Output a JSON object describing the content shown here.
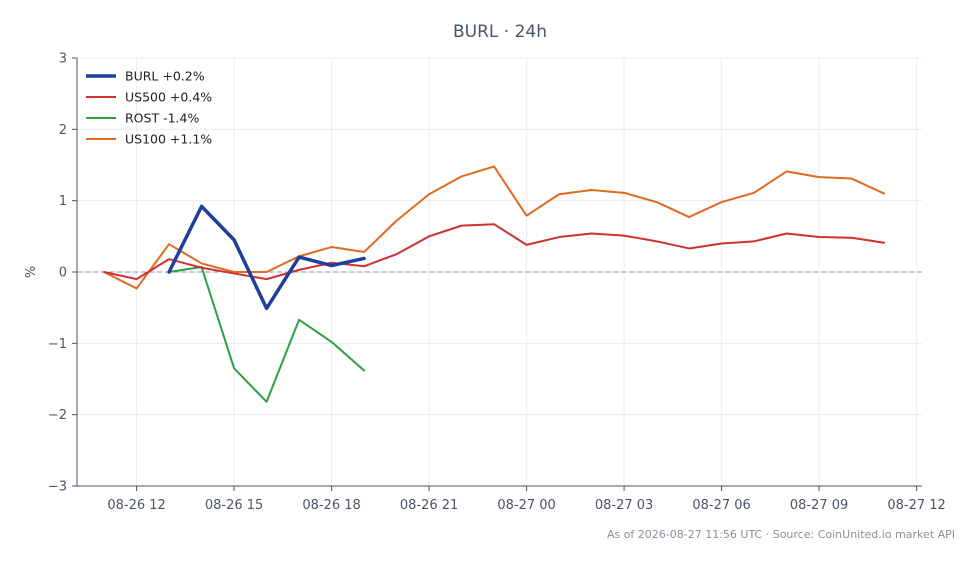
{
  "chart_data": {
    "type": "line",
    "title": "BURL · 24h",
    "ylabel": "%",
    "xlabel": "",
    "ylim": [
      -3,
      3
    ],
    "yticks": [
      {
        "value": 3,
        "label": "3"
      },
      {
        "value": 2,
        "label": "2"
      },
      {
        "value": 1,
        "label": "1"
      },
      {
        "value": 0,
        "label": "0"
      },
      {
        "value": -1,
        "label": "−1"
      },
      {
        "value": -2,
        "label": "−2"
      },
      {
        "value": -3,
        "label": "−3"
      }
    ],
    "xlim": [
      "08-26 10:10",
      "08-27 12:10"
    ],
    "xticks": [
      {
        "value": "08-26 12:00",
        "label": "08-26 12"
      },
      {
        "value": "08-26 15:00",
        "label": "08-26 15"
      },
      {
        "value": "08-26 18:00",
        "label": "08-26 18"
      },
      {
        "value": "08-26 21:00",
        "label": "08-26 21"
      },
      {
        "value": "08-27 00:00",
        "label": "08-27 00"
      },
      {
        "value": "08-27 03:00",
        "label": "08-27 03"
      },
      {
        "value": "08-27 06:00",
        "label": "08-27 06"
      },
      {
        "value": "08-27 09:00",
        "label": "08-27 09"
      },
      {
        "value": "08-27 12:00",
        "label": "08-27 12"
      }
    ],
    "grid": true,
    "zero_line": true,
    "legend_position": "top-left",
    "series": [
      {
        "name": "BURL +0.2%",
        "color": "#1f3f9e",
        "width": 3.5,
        "points": [
          [
            "08-26 13:00",
            0.0
          ],
          [
            "08-26 14:00",
            0.92
          ],
          [
            "08-26 15:00",
            0.45
          ],
          [
            "08-26 16:00",
            -0.51
          ],
          [
            "08-26 17:00",
            0.21
          ],
          [
            "08-26 18:00",
            0.09
          ],
          [
            "08-26 19:00",
            0.19
          ]
        ]
      },
      {
        "name": "US500 +0.4%",
        "color": "#d03030",
        "width": 2,
        "points": [
          [
            "08-26 11:00",
            0.0
          ],
          [
            "08-26 12:00",
            -0.1
          ],
          [
            "08-26 13:00",
            0.18
          ],
          [
            "08-26 14:00",
            0.06
          ],
          [
            "08-26 15:00",
            -0.02
          ],
          [
            "08-26 16:00",
            -0.1
          ],
          [
            "08-26 17:00",
            0.03
          ],
          [
            "08-26 18:00",
            0.13
          ],
          [
            "08-26 19:00",
            0.08
          ],
          [
            "08-26 20:00",
            0.25
          ],
          [
            "08-26 21:00",
            0.5
          ],
          [
            "08-26 22:00",
            0.65
          ],
          [
            "08-26 23:00",
            0.67
          ],
          [
            "08-27 00:00",
            0.38
          ],
          [
            "08-27 01:00",
            0.49
          ],
          [
            "08-27 02:00",
            0.54
          ],
          [
            "08-27 03:00",
            0.51
          ],
          [
            "08-27 04:00",
            0.43
          ],
          [
            "08-27 05:00",
            0.33
          ],
          [
            "08-27 06:00",
            0.4
          ],
          [
            "08-27 07:00",
            0.43
          ],
          [
            "08-27 08:00",
            0.54
          ],
          [
            "08-27 09:00",
            0.49
          ],
          [
            "08-27 10:00",
            0.48
          ],
          [
            "08-27 11:00",
            0.41
          ]
        ]
      },
      {
        "name": "ROST -1.4%",
        "color": "#2ca040",
        "width": 2,
        "points": [
          [
            "08-26 13:00",
            0.0
          ],
          [
            "08-26 14:00",
            0.07
          ],
          [
            "08-26 15:00",
            -1.35
          ],
          [
            "08-26 16:00",
            -1.82
          ],
          [
            "08-26 17:00",
            -0.67
          ],
          [
            "08-26 18:00",
            -0.98
          ],
          [
            "08-26 19:00",
            -1.38
          ]
        ]
      },
      {
        "name": "US100 +1.1%",
        "color": "#e06a20",
        "width": 2,
        "points": [
          [
            "08-26 11:00",
            0.0
          ],
          [
            "08-26 12:00",
            -0.23
          ],
          [
            "08-26 13:00",
            0.39
          ],
          [
            "08-26 14:00",
            0.12
          ],
          [
            "08-26 15:00",
            0.0
          ],
          [
            "08-26 16:00",
            0.0
          ],
          [
            "08-26 17:00",
            0.22
          ],
          [
            "08-26 18:00",
            0.35
          ],
          [
            "08-26 19:00",
            0.28
          ],
          [
            "08-26 20:00",
            0.72
          ],
          [
            "08-26 21:00",
            1.09
          ],
          [
            "08-26 22:00",
            1.34
          ],
          [
            "08-26 23:00",
            1.48
          ],
          [
            "08-27 00:00",
            0.79
          ],
          [
            "08-27 01:00",
            1.09
          ],
          [
            "08-27 02:00",
            1.15
          ],
          [
            "08-27 03:00",
            1.11
          ],
          [
            "08-27 04:00",
            0.98
          ],
          [
            "08-27 05:00",
            0.77
          ],
          [
            "08-27 06:00",
            0.98
          ],
          [
            "08-27 07:00",
            1.11
          ],
          [
            "08-27 08:00",
            1.41
          ],
          [
            "08-27 09:00",
            1.33
          ],
          [
            "08-27 10:00",
            1.31
          ],
          [
            "08-27 11:00",
            1.1
          ]
        ]
      }
    ],
    "footnote": "As of 2026-08-27 11:56 UTC · Source: CoinUnited.io market API"
  }
}
